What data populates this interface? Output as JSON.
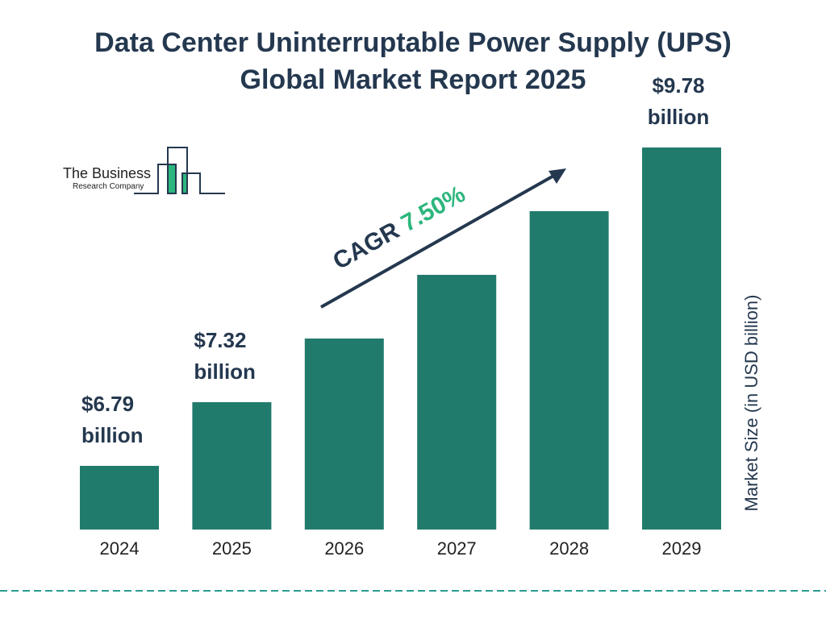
{
  "title_line1": "Data Center Uninterruptable Power Supply (UPS)",
  "title_line2": "Global Market Report 2025",
  "logo": {
    "line1": "The Business",
    "line2": "Research Company"
  },
  "colors": {
    "bar": "#217b6c",
    "text": "#24384f",
    "accent": "#2cb67d"
  },
  "chart_data": {
    "type": "bar",
    "title": "Data Center Uninterruptable Power Supply (UPS) Global Market Report 2025",
    "ylabel": "Market Size (in USD billion)",
    "categories": [
      "2024",
      "2025",
      "2026",
      "2027",
      "2028",
      "2029"
    ],
    "values": [
      6.79,
      7.32,
      7.87,
      8.46,
      9.09,
      9.78
    ],
    "data_labels": [
      [
        "$6.79",
        "billion"
      ],
      [
        "$7.32",
        "billion"
      ],
      null,
      null,
      null,
      [
        "$9.78",
        "billion"
      ]
    ],
    "annotation": {
      "prefix": "CAGR ",
      "value": "7.50%"
    },
    "ylim": [
      6.2,
      10
    ],
    "grid": false
  }
}
